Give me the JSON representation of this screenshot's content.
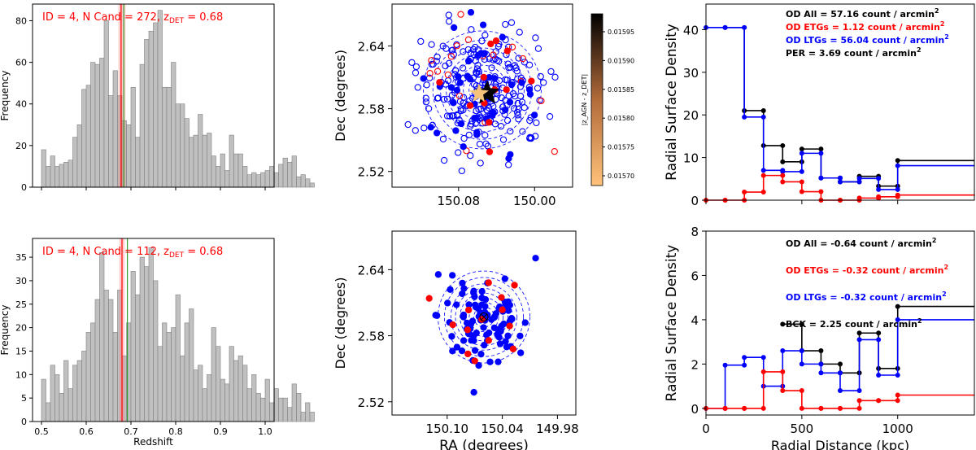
{
  "chart_data": [
    {
      "type": "bar",
      "panel": "histogram-top",
      "annotation": {
        "main": "ID = 4, N Cand = 272, z",
        "sub": "DET",
        "tail": " = 0.68"
      },
      "ylabel": "Frequency",
      "xlabel": "",
      "xlim": [
        0.48,
        1.02
      ],
      "ylim": [
        0,
        88
      ],
      "xticks": [
        0.5,
        0.6,
        0.7,
        0.8,
        0.9,
        1.0
      ],
      "xtick_labels": [],
      "yticks": [
        0,
        20,
        40,
        60,
        80
      ],
      "bin_start": 0.5,
      "bin_width": 0.01,
      "values": [
        18,
        10,
        15,
        10,
        11,
        12,
        13,
        24,
        30,
        47,
        49,
        60,
        59,
        62,
        80,
        44,
        56,
        44,
        32,
        30,
        48,
        24,
        59,
        71,
        75,
        79,
        85,
        48,
        48,
        60,
        40,
        40,
        33,
        24,
        25,
        35,
        25,
        26,
        15,
        10,
        16,
        8,
        25,
        16,
        16,
        10,
        6,
        7,
        6,
        7,
        8,
        10,
        7,
        11,
        14,
        12,
        15,
        5,
        6,
        4,
        2,
        0
      ],
      "vlines": [
        0.678,
        0.684
      ],
      "band": [
        0.672,
        0.688
      ]
    },
    {
      "type": "bar",
      "panel": "histogram-bottom",
      "annotation": {
        "main": "ID = 4, N Cand = 112, z",
        "sub": "DET",
        "tail": " = 0.68"
      },
      "ylabel": "Frequency",
      "xlabel": "Redshift",
      "xlim": [
        0.48,
        1.02
      ],
      "ylim": [
        0,
        39
      ],
      "xticks": [
        0.5,
        0.6,
        0.7,
        0.8,
        0.9,
        1.0
      ],
      "xtick_labels": [
        "0.5",
        "0.6",
        "0.7",
        "0.8",
        "0.9",
        "1.0"
      ],
      "yticks": [
        0,
        5,
        10,
        15,
        20,
        25,
        30,
        35
      ],
      "bin_start": 0.5,
      "bin_width": 0.01,
      "values": [
        9,
        4,
        12,
        10,
        6,
        13,
        7,
        12,
        13,
        15,
        19,
        21,
        26,
        36,
        28,
        26,
        19,
        28,
        14,
        21,
        32,
        27,
        35,
        33,
        37,
        30,
        16,
        21,
        19,
        20,
        27,
        14,
        21,
        24,
        11,
        12,
        7,
        10,
        20,
        16,
        9,
        8,
        16,
        13,
        14,
        12,
        7,
        10,
        6,
        5,
        9,
        4,
        7,
        5,
        5,
        3,
        8,
        6,
        2,
        4,
        2,
        0
      ],
      "vlines": [
        0.68,
        0.692
      ],
      "band": [
        0.674,
        0.686
      ]
    },
    {
      "type": "scatter",
      "panel": "sky-map-top",
      "ylabel": "Dec (degrees)",
      "xlabel": "",
      "xlim": [
        150.15,
        149.96
      ],
      "ylim": [
        2.505,
        2.68
      ],
      "xticks": [
        150.08,
        150.0
      ],
      "xtick_labels": [
        "150.08",
        "150.00"
      ],
      "yticks": [
        2.52,
        2.58,
        2.64
      ],
      "ytick_labels": [
        "2.52",
        "2.58",
        "2.64"
      ],
      "center": [
        150.055,
        2.598
      ],
      "ring_radii_deg": [
        0.008,
        0.014,
        0.02,
        0.026,
        0.032,
        0.038,
        0.044,
        0.052,
        0.062
      ],
      "colorbar": {
        "label": "|z_AGN - z_DET|",
        "ticks": [
          "0.01595",
          "0.01590",
          "0.01585",
          "0.01580",
          "0.01575",
          "0.01570"
        ]
      },
      "red_open": 18,
      "red_filled": 14,
      "blue_open": 232,
      "blue_filled": 42
    },
    {
      "type": "scatter",
      "panel": "sky-map-bottom",
      "ylabel": "Dec (degrees)",
      "xlabel": "RA (degrees)",
      "xlim": [
        150.16,
        149.96
      ],
      "ylim": [
        2.508,
        2.675
      ],
      "xticks": [
        150.1,
        150.04,
        149.98
      ],
      "xtick_labels": [
        "150.10",
        "150.04",
        "149.98"
      ],
      "yticks": [
        2.52,
        2.58,
        2.64
      ],
      "ytick_labels": [
        "2.52",
        "2.58",
        "2.64"
      ],
      "center": [
        150.06,
        2.597
      ],
      "ring_radii_deg": [
        0.006,
        0.011,
        0.016,
        0.021,
        0.026,
        0.031,
        0.036,
        0.043,
        0.05
      ],
      "red_filled": 14,
      "blue_filled": 98
    },
    {
      "type": "line",
      "panel": "radial-density-top",
      "ylabel": "Radial Surface Density",
      "xlabel": "",
      "xlim": [
        0,
        1400
      ],
      "ylim": [
        0,
        46
      ],
      "yticks": [
        0,
        10,
        20,
        30,
        40
      ],
      "xticks": [
        0,
        500,
        1000
      ],
      "legend": [
        {
          "text": "OD All = 57.16 count / arcmin",
          "sup": "2",
          "color": "#000000"
        },
        {
          "text": "OD ETGs = 1.12 count / arcmin",
          "sup": "2",
          "color": "#ff0000"
        },
        {
          "text": "OD LTGs = 56.04 count / arcmin",
          "sup": "2",
          "color": "#0000ff"
        },
        {
          "text": "PER = 3.69 count / arcmin",
          "sup": "2",
          "color": "#000000"
        }
      ],
      "series": [
        {
          "name": "All",
          "color": "#000000",
          "x": [
            100,
            200,
            300,
            400,
            500,
            600,
            700,
            800,
            900,
            1000,
            1400
          ],
          "y": [
            40.5,
            21,
            12.8,
            9,
            12,
            5.2,
            4.3,
            5.6,
            3.3,
            9.3,
            9.3
          ]
        },
        {
          "name": "LTGs",
          "color": "#0000ff",
          "x": [
            0,
            100,
            200,
            300,
            400,
            500,
            600,
            700,
            800,
            900,
            1000,
            1400
          ],
          "y": [
            40.5,
            40.5,
            19.5,
            7,
            6.7,
            11,
            5.2,
            4.3,
            5.1,
            2.5,
            8.1,
            8.1
          ]
        },
        {
          "name": "ETGs",
          "color": "#ff0000",
          "x": [
            0,
            100,
            200,
            300,
            400,
            500,
            600,
            700,
            800,
            900,
            1000,
            1400
          ],
          "y": [
            0,
            0,
            1.9,
            5.8,
            4.3,
            2,
            0,
            0,
            0.5,
            0.8,
            1.2,
            1.3
          ]
        }
      ]
    },
    {
      "type": "line",
      "panel": "radial-density-bottom",
      "ylabel": "Radial Surface Density",
      "xlabel": "Radial Distance (kpc)",
      "xlim": [
        0,
        1400
      ],
      "ylim": [
        -0.3,
        8
      ],
      "yticks": [
        0,
        2,
        4,
        6,
        8
      ],
      "xticks": [
        0,
        500,
        1000
      ],
      "xtick_labels": [
        "0",
        "500",
        "1000"
      ],
      "legend": [
        {
          "text": "OD All = -0.64 count / arcmin",
          "sup": "2",
          "color": "#000000"
        },
        {
          "text": "OD ETGs = -0.32 count / arcmin",
          "sup": "2",
          "color": "#ff0000"
        },
        {
          "text": "OD LTGs = -0.32 count / arcmin",
          "sup": "2",
          "color": "#0000ff"
        },
        {
          "text": "BCK = 2.25 count / arcmin",
          "sup": "2",
          "color": "#000000"
        }
      ],
      "series": [
        {
          "name": "All",
          "color": "#000000",
          "x": [
            400,
            500,
            600,
            700,
            800,
            900,
            1000,
            1400
          ],
          "y": [
            3.8,
            2.6,
            2,
            1.6,
            3.4,
            1.8,
            4.6,
            4.6
          ]
        },
        {
          "name": "LTGs",
          "color": "#0000ff",
          "x": [
            0,
            100,
            200,
            300,
            400,
            500,
            600,
            700,
            800,
            900,
            1000,
            1400
          ],
          "y": [
            0,
            1.95,
            2.3,
            1.0,
            2.6,
            2.0,
            1.6,
            0.8,
            3.1,
            1.5,
            4.0,
            4.0
          ]
        },
        {
          "name": "ETGs",
          "color": "#ff0000",
          "x": [
            0,
            100,
            200,
            300,
            400,
            500,
            600,
            700,
            800,
            900,
            1000,
            1400
          ],
          "y": [
            0,
            0,
            0,
            1.65,
            0.8,
            0,
            0,
            0,
            0.35,
            0.35,
            0.6,
            0.6
          ]
        }
      ]
    }
  ]
}
